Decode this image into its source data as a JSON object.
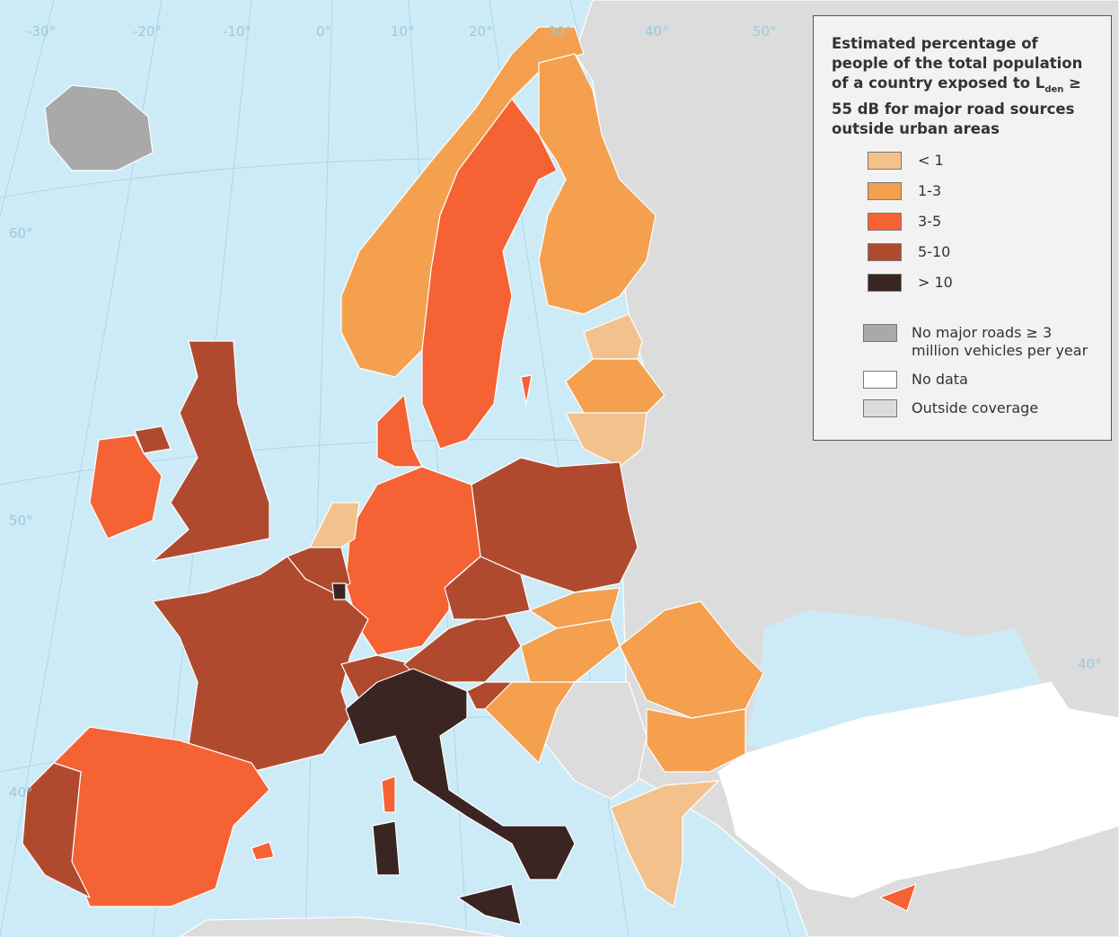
{
  "title_parts": [
    "Estimated percentage of people of the total population of a country exposed to L",
    "den",
    " ≥ 55 dB for major road sources outside urban areas"
  ],
  "legend": {
    "classes": [
      {
        "label": "< 1",
        "color": "#f3c28c"
      },
      {
        "label": "1-3",
        "color": "#f4a04e"
      },
      {
        "label": "3-5",
        "color": "#f56233"
      },
      {
        "label": "5-10",
        "color": "#b04a2f"
      },
      {
        "label": "> 10",
        "color": "#3a2523"
      }
    ],
    "other": [
      {
        "label": "No major roads ≥ 3 million vehicles per year",
        "color": "#a9a9a9"
      },
      {
        "label": "No data",
        "color": "#ffffff"
      },
      {
        "label": "Outside coverage",
        "color": "#dcdcdc"
      }
    ]
  },
  "graticule": [
    "-30°",
    "-20°",
    "-10°",
    "0°",
    "10°",
    "20°",
    "30°",
    "40°",
    "50°",
    "60°",
    "50°",
    "40°",
    "40°"
  ]
}
